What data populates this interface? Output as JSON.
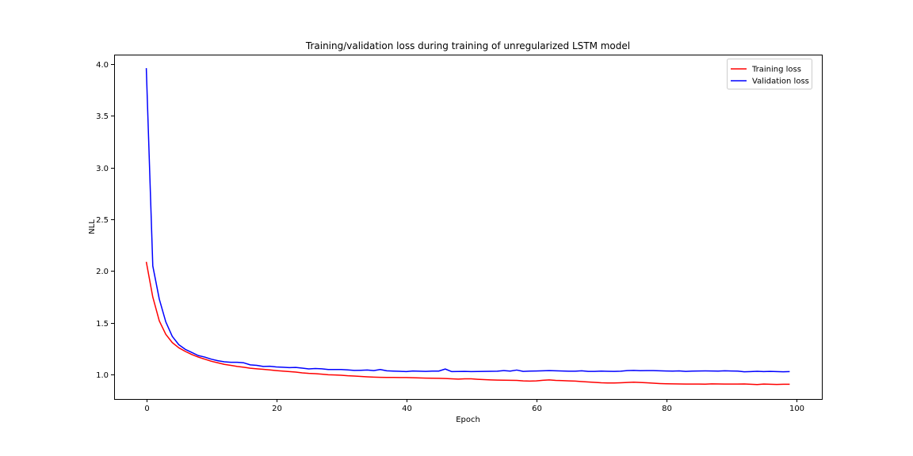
{
  "chart_data": {
    "type": "line",
    "title": "Training/validation loss during training of unregularized LSTM model",
    "xlabel": "Epoch",
    "ylabel": "NLL",
    "xlim": [
      -4.95,
      103.95
    ],
    "ylim": [
      0.7655,
      4.0905
    ],
    "xticks": [
      0,
      20,
      40,
      60,
      80,
      100
    ],
    "yticks": [
      1.0,
      1.5,
      2.0,
      2.5,
      3.0,
      3.5,
      4.0
    ],
    "xtick_labels": [
      "0",
      "20",
      "40",
      "60",
      "80",
      "100"
    ],
    "ytick_labels": [
      "1.0",
      "1.5",
      "2.0",
      "2.5",
      "3.0",
      "3.5",
      "4.0"
    ],
    "grid": false,
    "legend_position": "top-right",
    "x": [
      0,
      1,
      2,
      3,
      4,
      5,
      6,
      7,
      8,
      9,
      10,
      11,
      12,
      13,
      14,
      15,
      16,
      17,
      18,
      19,
      20,
      21,
      22,
      23,
      24,
      25,
      26,
      27,
      28,
      29,
      30,
      31,
      32,
      33,
      34,
      35,
      36,
      37,
      38,
      39,
      40,
      41,
      42,
      43,
      44,
      45,
      46,
      47,
      48,
      49,
      50,
      51,
      52,
      53,
      54,
      55,
      56,
      57,
      58,
      59,
      60,
      61,
      62,
      63,
      64,
      65,
      66,
      67,
      68,
      69,
      70,
      71,
      72,
      73,
      74,
      75,
      76,
      77,
      78,
      79,
      80,
      81,
      82,
      83,
      84,
      85,
      86,
      87,
      88,
      89,
      90,
      91,
      92,
      93,
      94,
      95,
      96,
      97,
      98,
      99
    ],
    "series": [
      {
        "name": "Training loss",
        "color": "#ff0000",
        "values": [
          2.09,
          1.75,
          1.52,
          1.39,
          1.31,
          1.26,
          1.225,
          1.195,
          1.17,
          1.15,
          1.13,
          1.115,
          1.1,
          1.09,
          1.08,
          1.072,
          1.063,
          1.057,
          1.052,
          1.046,
          1.04,
          1.035,
          1.03,
          1.025,
          1.018,
          1.013,
          1.01,
          1.005,
          1.0,
          0.998,
          0.995,
          0.99,
          0.987,
          0.983,
          0.98,
          0.977,
          0.975,
          0.974,
          0.974,
          0.973,
          0.973,
          0.971,
          0.969,
          0.967,
          0.966,
          0.965,
          0.963,
          0.96,
          0.958,
          0.96,
          0.96,
          0.956,
          0.953,
          0.95,
          0.948,
          0.947,
          0.946,
          0.945,
          0.94,
          0.938,
          0.94,
          0.946,
          0.95,
          0.945,
          0.943,
          0.94,
          0.938,
          0.934,
          0.93,
          0.926,
          0.922,
          0.92,
          0.92,
          0.922,
          0.925,
          0.928,
          0.925,
          0.922,
          0.918,
          0.915,
          0.913,
          0.912,
          0.911,
          0.91,
          0.91,
          0.91,
          0.909,
          0.912,
          0.911,
          0.91,
          0.91,
          0.91,
          0.911,
          0.908,
          0.905,
          0.91,
          0.908,
          0.906,
          0.908,
          0.908
        ]
      },
      {
        "name": "Validation loss",
        "color": "#0000ff",
        "values": [
          3.96,
          2.05,
          1.73,
          1.51,
          1.37,
          1.29,
          1.245,
          1.215,
          1.185,
          1.17,
          1.15,
          1.135,
          1.125,
          1.12,
          1.12,
          1.115,
          1.095,
          1.09,
          1.08,
          1.082,
          1.075,
          1.072,
          1.068,
          1.07,
          1.064,
          1.056,
          1.06,
          1.057,
          1.05,
          1.05,
          1.05,
          1.046,
          1.042,
          1.043,
          1.045,
          1.04,
          1.05,
          1.038,
          1.035,
          1.033,
          1.03,
          1.036,
          1.034,
          1.032,
          1.035,
          1.035,
          1.055,
          1.03,
          1.031,
          1.032,
          1.03,
          1.031,
          1.032,
          1.033,
          1.034,
          1.04,
          1.035,
          1.045,
          1.032,
          1.035,
          1.036,
          1.038,
          1.04,
          1.038,
          1.036,
          1.034,
          1.034,
          1.038,
          1.032,
          1.032,
          1.035,
          1.033,
          1.032,
          1.034,
          1.04,
          1.042,
          1.039,
          1.04,
          1.04,
          1.038,
          1.036,
          1.035,
          1.037,
          1.032,
          1.035,
          1.036,
          1.037,
          1.036,
          1.035,
          1.038,
          1.036,
          1.035,
          1.028,
          1.03,
          1.033,
          1.03,
          1.032,
          1.03,
          1.028,
          1.03
        ]
      }
    ]
  }
}
